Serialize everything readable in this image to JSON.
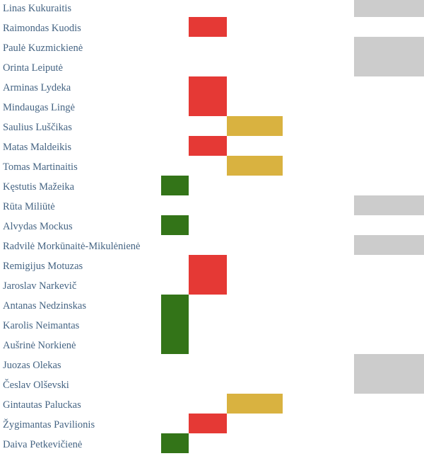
{
  "colors": {
    "green": "#337418",
    "red": "#e53935",
    "yellow": "#d9b240",
    "gray": "#cccccc"
  },
  "rows": [
    {
      "name": "Linas Kukuraitis",
      "mark": "gray"
    },
    {
      "name": "Raimondas Kuodis",
      "mark": "red"
    },
    {
      "name": "Paulė Kuzmickienė",
      "mark": "gray"
    },
    {
      "name": "Orinta Leiputė",
      "mark": "gray"
    },
    {
      "name": "Arminas Lydeka",
      "mark": "red"
    },
    {
      "name": "Mindaugas Lingė",
      "mark": "red"
    },
    {
      "name": "Saulius Luščikas",
      "mark": "yellow"
    },
    {
      "name": "Matas Maldeikis",
      "mark": "red"
    },
    {
      "name": "Tomas Martinaitis",
      "mark": "yellow"
    },
    {
      "name": "Kęstutis Mažeika",
      "mark": "green"
    },
    {
      "name": "Rūta Miliūtė",
      "mark": "gray"
    },
    {
      "name": "Alvydas Mockus",
      "mark": "green"
    },
    {
      "name": "Radvilė Morkūnaitė-Mikulėnienė",
      "mark": "gray"
    },
    {
      "name": "Remigijus Motuzas",
      "mark": "red"
    },
    {
      "name": "Jaroslav Narkevič",
      "mark": "red"
    },
    {
      "name": "Antanas Nedzinskas",
      "mark": "green"
    },
    {
      "name": "Karolis Neimantas",
      "mark": "green"
    },
    {
      "name": "Aušrinė Norkienė",
      "mark": "green"
    },
    {
      "name": "Juozas Olekas",
      "mark": "gray"
    },
    {
      "name": "Česlav Olševski",
      "mark": "gray"
    },
    {
      "name": "Gintautas Paluckas",
      "mark": "yellow"
    },
    {
      "name": "Žygimantas Pavilionis",
      "mark": "red"
    },
    {
      "name": "Daiva Petkevičienė",
      "mark": "green"
    }
  ]
}
